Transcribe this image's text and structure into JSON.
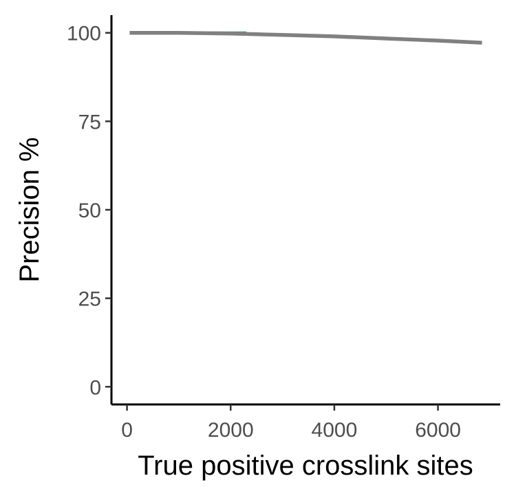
{
  "chart_data": {
    "type": "line",
    "title": "",
    "xlabel": "True positive crosslink sites",
    "ylabel": "Precision %",
    "xlim": [
      -300,
      7200
    ],
    "ylim": [
      -5,
      105
    ],
    "x_ticks": [
      0,
      2000,
      4000,
      6000
    ],
    "x_tick_labels": [
      "0",
      "2000",
      "4000",
      "6000"
    ],
    "y_ticks": [
      0,
      25,
      50,
      75,
      100
    ],
    "y_tick_labels": [
      "0",
      "25",
      "50",
      "75",
      "100"
    ],
    "grid": false,
    "legend": "none",
    "series": [
      {
        "color": "#1a9850",
        "x": [
          1400,
          1800,
          2300
        ],
        "y": [
          100,
          100,
          100
        ]
      },
      {
        "color": "#808080",
        "x": [
          50,
          1000,
          2000,
          3000,
          4000,
          5000,
          6000,
          6850
        ],
        "y": [
          100,
          100,
          99.8,
          99.4,
          99.0,
          98.4,
          97.8,
          97.2
        ]
      }
    ]
  }
}
